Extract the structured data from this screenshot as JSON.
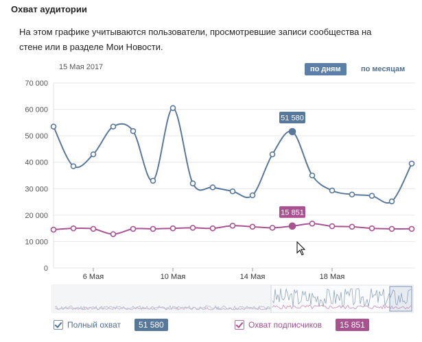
{
  "header": {
    "title": "Охват аудитории",
    "description": "На этом графике учитываются пользователи, просмотревшие записи сообщества на стене или в разделе Мои Новости."
  },
  "toolbar": {
    "date_label": "15 Мая 2017",
    "by_day": "по дням",
    "by_month": "по месяцам"
  },
  "colors": {
    "blue": "#58789b",
    "pink": "#a85290",
    "grid": "#e6e6e6"
  },
  "chart_data": {
    "type": "line",
    "ylim": [
      0,
      70000
    ],
    "yticks": [
      "0",
      "10 000",
      "20 000",
      "30 000",
      "40 000",
      "50 000",
      "60 000",
      "70 000"
    ],
    "ytick_values": [
      0,
      10000,
      20000,
      30000,
      40000,
      50000,
      60000,
      70000
    ],
    "xticks": [
      {
        "label": "6 Мая",
        "day": 6
      },
      {
        "label": "10 Мая",
        "day": 10
      },
      {
        "label": "14 Мая",
        "day": 14
      },
      {
        "label": "18 Мая",
        "day": 18
      }
    ],
    "x": [
      4,
      5,
      6,
      7,
      8,
      9,
      10,
      11,
      12,
      13,
      14,
      15,
      16,
      17,
      18,
      19,
      20,
      21,
      22
    ],
    "series": [
      {
        "name": "Полный охват",
        "values": [
          53500,
          38500,
          43000,
          53500,
          51800,
          33000,
          60500,
          32000,
          30500,
          29000,
          27500,
          43000,
          51580,
          35000,
          29300,
          27800,
          27300,
          25200,
          39500
        ],
        "highlight_index": 12,
        "highlight_label": "51 580",
        "total": "51 580"
      },
      {
        "name": "Охват подписчиков",
        "values": [
          14500,
          15000,
          14800,
          12800,
          14800,
          14800,
          15000,
          15200,
          15000,
          16000,
          15600,
          15200,
          15851,
          16800,
          15800,
          15600,
          15000,
          14800,
          14800
        ],
        "highlight_index": 12,
        "highlight_label": "15 851",
        "total": "15 851"
      }
    ]
  }
}
